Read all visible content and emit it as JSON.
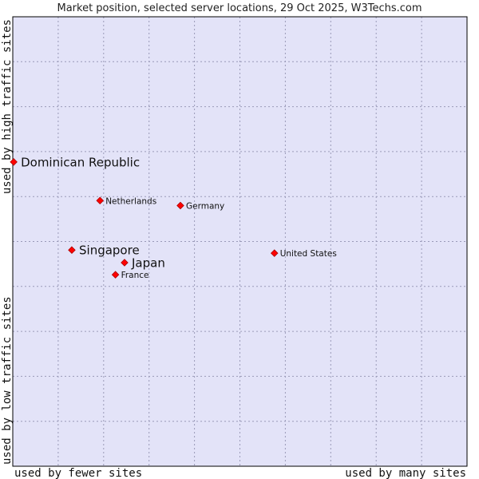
{
  "chart_data": {
    "type": "scatter",
    "title": "Market position, selected server locations, 29 Oct 2025, W3Techs.com",
    "xlabel_left": "used by fewer sites",
    "xlabel_right": "used by many sites",
    "ylabel_bottom": "used by low traffic sites",
    "ylabel_top": "used by high traffic sites",
    "xlim": [
      0,
      100
    ],
    "ylim": [
      0,
      100
    ],
    "grid": true,
    "points": [
      {
        "label": "Dominican Republic",
        "x": 0.2,
        "y": 67.7,
        "size": "large"
      },
      {
        "label": "Netherlands",
        "x": 19.2,
        "y": 59.1,
        "size": "small"
      },
      {
        "label": "Germany",
        "x": 36.9,
        "y": 58.0,
        "size": "small"
      },
      {
        "label": "Singapore",
        "x": 13.0,
        "y": 48.1,
        "size": "large"
      },
      {
        "label": "Japan",
        "x": 24.6,
        "y": 45.3,
        "size": "large"
      },
      {
        "label": "France",
        "x": 22.6,
        "y": 42.6,
        "size": "small"
      },
      {
        "label": "United States",
        "x": 57.6,
        "y": 47.4,
        "size": "small"
      }
    ],
    "colors": {
      "plot_background": "#e3e3f8",
      "marker": "#ff0000",
      "marker_edge": "#aa0000",
      "frame": "#000000"
    }
  }
}
